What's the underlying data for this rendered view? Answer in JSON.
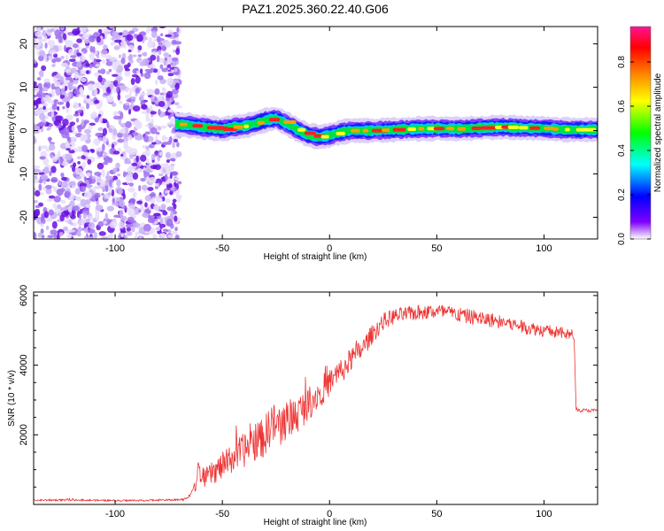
{
  "chart_data": [
    {
      "type": "heatmap",
      "title": "PAZ1.2025.360.22.40.G06",
      "xlabel": "Height of straight line (km)",
      "ylabel": "Frequency (Hz)",
      "xlim": [
        -138,
        125
      ],
      "ylim": [
        -25,
        24
      ],
      "xticks": [
        -100,
        -50,
        0,
        50,
        100
      ],
      "yticks": [
        20,
        10,
        0,
        -10,
        -20
      ],
      "noise_region_x": [
        -138,
        -70
      ],
      "ridge": {
        "x": [
          -72,
          -65,
          -60,
          -55,
          -50,
          -45,
          -40,
          -35,
          -30,
          -25,
          -20,
          -15,
          -10,
          -5,
          0,
          5,
          10,
          20,
          30,
          40,
          50,
          60,
          70,
          80,
          90,
          100,
          110,
          125
        ],
        "y": [
          1.5,
          1.2,
          0.8,
          0.6,
          0.3,
          0.8,
          1.0,
          1.6,
          2.4,
          2.8,
          1.6,
          0.2,
          -1.0,
          -1.5,
          -1.1,
          -0.4,
          0.0,
          0.0,
          0.2,
          0.4,
          0.5,
          0.4,
          0.6,
          0.8,
          0.6,
          0.5,
          0.2,
          0.2
        ]
      },
      "colorbar": {
        "label": "Normalized spectral amplitude",
        "range": [
          0.0,
          0.96
        ],
        "ticks": [
          "0.0",
          "0.2",
          "0.4",
          "0.6",
          "0.8"
        ],
        "colors": [
          "#ffffff",
          "#7f00ff",
          "#0000ff",
          "#00ffff",
          "#00ff00",
          "#ffff00",
          "#ff8000",
          "#ff0000",
          "#ff1493"
        ]
      }
    },
    {
      "type": "line",
      "xlabel": "Height of straight line (km)",
      "ylabel": "SNR (10 * v/v)",
      "xlim": [
        -138,
        125
      ],
      "ylim": [
        0,
        6100
      ],
      "xticks": [
        -100,
        -50,
        0,
        50,
        100
      ],
      "yticks": [
        2000,
        4000,
        6000
      ],
      "color": "#ee3333",
      "series": [
        {
          "name": "SNR",
          "x": [
            -138,
            -120,
            -100,
            -80,
            -68,
            -65,
            -62,
            -61,
            -60,
            -57,
            -50,
            -45,
            -40,
            -35,
            -30,
            -27,
            -25,
            -20,
            -15,
            -10,
            -5,
            0,
            5,
            10,
            15,
            20,
            25,
            30,
            35,
            40,
            50,
            60,
            70,
            80,
            90,
            100,
            110,
            114,
            115,
            116,
            120,
            125
          ],
          "y": [
            120,
            130,
            110,
            120,
            140,
            280,
            600,
            1500,
            700,
            800,
            1100,
            1350,
            1550,
            1800,
            1950,
            2400,
            2200,
            2400,
            2600,
            2900,
            3200,
            3500,
            3800,
            4150,
            4450,
            4900,
            5250,
            5400,
            5450,
            5500,
            5550,
            5450,
            5350,
            5250,
            5100,
            5000,
            4900,
            4850,
            2750,
            2700,
            2700,
            2700
          ],
          "noise_amp": [
            25,
            25,
            25,
            25,
            30,
            60,
            180,
            350,
            250,
            300,
            400,
            450,
            500,
            550,
            600,
            650,
            600,
            600,
            550,
            500,
            450,
            420,
            400,
            350,
            300,
            280,
            250,
            230,
            220,
            220,
            230,
            230,
            220,
            210,
            200,
            190,
            180,
            180,
            50,
            50,
            50,
            50
          ]
        }
      ]
    }
  ]
}
